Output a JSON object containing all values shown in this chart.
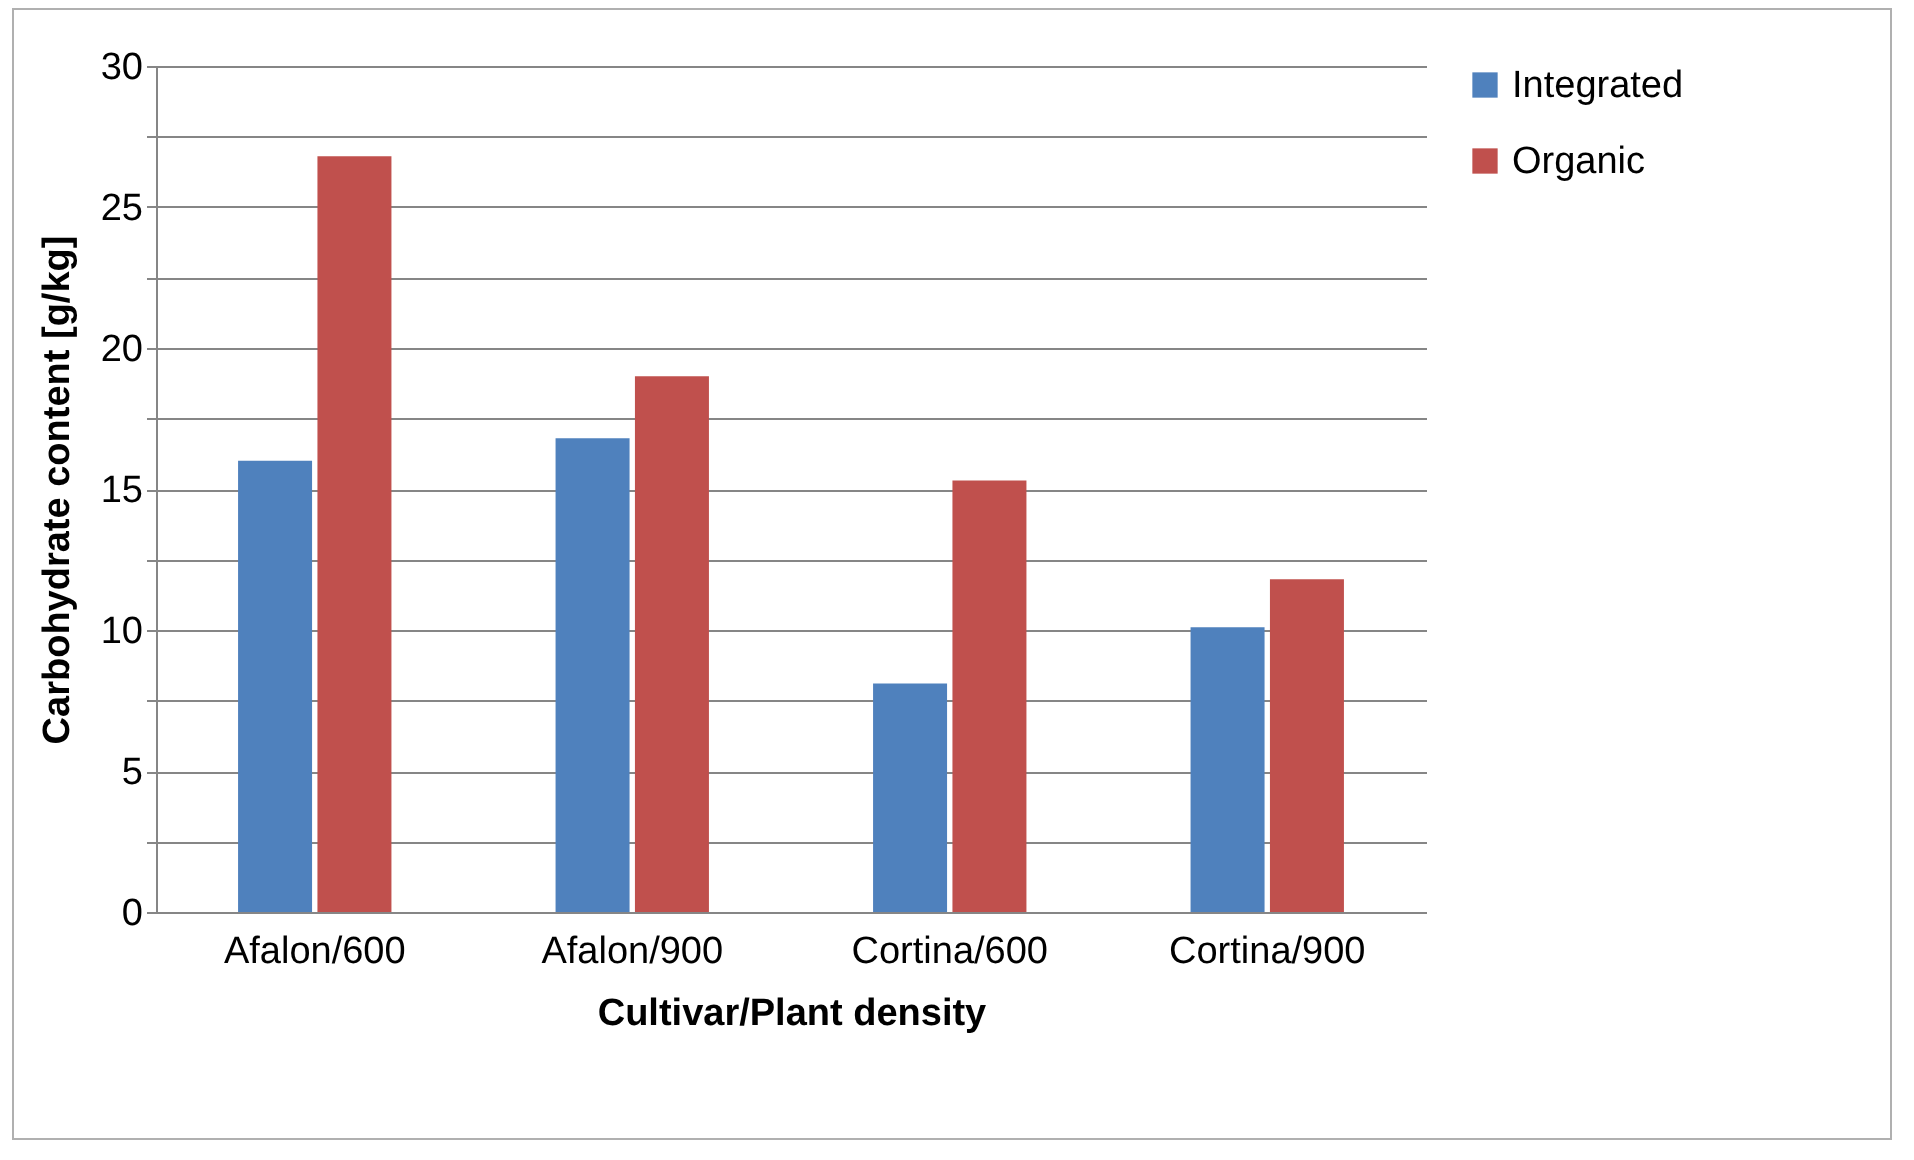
{
  "chart_data": {
    "type": "bar",
    "xlabel": "Cultivar/Plant density",
    "ylabel": "Carbohydrate content [g/kg]",
    "categories": [
      "Afalon/600",
      "Afalon/900",
      "Cortina/600",
      "Cortina/900"
    ],
    "series": [
      {
        "name": "Integrated",
        "color": "#4f81bd",
        "values": [
          16.0,
          16.8,
          8.1,
          10.1
        ]
      },
      {
        "name": "Organic",
        "color": "#c0504d",
        "values": [
          26.8,
          19.0,
          15.3,
          11.8
        ]
      }
    ],
    "ylim": [
      0,
      30
    ],
    "yticks": [
      0,
      {
        "value": 2.5,
        "label": null
      },
      5,
      {
        "value": 7.5,
        "label": null
      },
      10,
      {
        "value": 12.5,
        "label": null
      },
      15,
      {
        "value": 17.5,
        "label": null
      },
      20,
      {
        "value": 22.5,
        "label": null
      },
      25,
      {
        "value": 27.5,
        "label": null
      },
      30
    ],
    "grid": "y",
    "legend": "right"
  }
}
